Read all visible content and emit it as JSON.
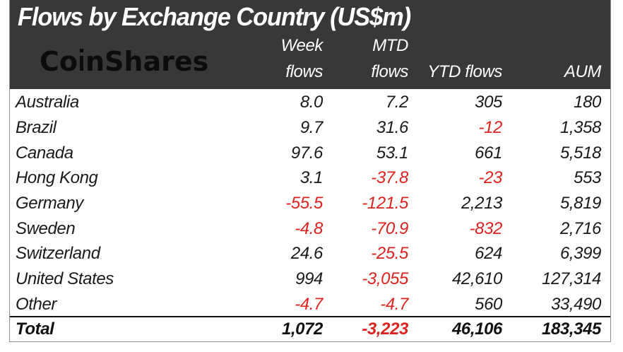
{
  "title": "Flows by Exchange Country (US$m)",
  "brand": {
    "name": "CoinShares"
  },
  "columns": [
    {
      "id": "country",
      "label": ""
    },
    {
      "id": "week",
      "label": "Week flows",
      "label_lines": "Week\nflows"
    },
    {
      "id": "mtd",
      "label": "MTD flows",
      "label_lines": "MTD\nflows"
    },
    {
      "id": "ytd",
      "label": "YTD flows",
      "label_lines": "YTD flows"
    },
    {
      "id": "aum",
      "label": "AUM",
      "label_lines": "AUM"
    }
  ],
  "rows": [
    {
      "country": "Australia",
      "week": "8.0",
      "mtd": "7.2",
      "ytd": "305",
      "aum": "180"
    },
    {
      "country": "Brazil",
      "week": "9.7",
      "mtd": "31.6",
      "ytd": "-12",
      "aum": "1,358"
    },
    {
      "country": "Canada",
      "week": "97.6",
      "mtd": "53.1",
      "ytd": "661",
      "aum": "5,518"
    },
    {
      "country": "Hong Kong",
      "week": "3.1",
      "mtd": "-37.8",
      "ytd": "-23",
      "aum": "553"
    },
    {
      "country": "Germany",
      "week": "-55.5",
      "mtd": "-121.5",
      "ytd": "2,213",
      "aum": "5,819"
    },
    {
      "country": "Sweden",
      "week": "-4.8",
      "mtd": "-70.9",
      "ytd": "-832",
      "aum": "2,716"
    },
    {
      "country": "Switzerland",
      "week": "24.6",
      "mtd": "-25.5",
      "ytd": "624",
      "aum": "6,399"
    },
    {
      "country": "United States",
      "week": "994",
      "mtd": "-3,055",
      "ytd": "42,610",
      "aum": "127,314"
    },
    {
      "country": "Other",
      "week": "-4.7",
      "mtd": "-4.7",
      "ytd": "560",
      "aum": "33,490"
    }
  ],
  "total": {
    "label": "Total",
    "week": "1,072",
    "mtd": "-3,223",
    "ytd": "46,106",
    "aum": "183,345"
  },
  "colors": {
    "header_bg": "#383838",
    "header_text": "#ffffff",
    "body_text": "#1a1a1a",
    "negative": "#dc231d",
    "logo": "#0c0c0c",
    "border": "#8f8f8f"
  },
  "chart_data": {
    "type": "table",
    "title": "Flows by Exchange Country (US$m)",
    "columns": [
      "Week flows",
      "MTD flows",
      "YTD flows",
      "AUM"
    ],
    "categories": [
      "Australia",
      "Brazil",
      "Canada",
      "Hong Kong",
      "Germany",
      "Sweden",
      "Switzerland",
      "United States",
      "Other",
      "Total"
    ],
    "series": [
      {
        "name": "Week flows",
        "values": [
          8.0,
          9.7,
          97.6,
          3.1,
          -55.5,
          -4.8,
          24.6,
          994,
          -4.7,
          1072
        ]
      },
      {
        "name": "MTD flows",
        "values": [
          7.2,
          31.6,
          53.1,
          -37.8,
          -121.5,
          -70.9,
          -25.5,
          -3055,
          -4.7,
          -3223
        ]
      },
      {
        "name": "YTD flows",
        "values": [
          305,
          -12,
          661,
          -23,
          2213,
          -832,
          624,
          42610,
          560,
          46106
        ]
      },
      {
        "name": "AUM",
        "values": [
          180,
          1358,
          5518,
          553,
          5819,
          2716,
          6399,
          127314,
          33490,
          183345
        ]
      }
    ],
    "negative_color": "#dc231d"
  }
}
